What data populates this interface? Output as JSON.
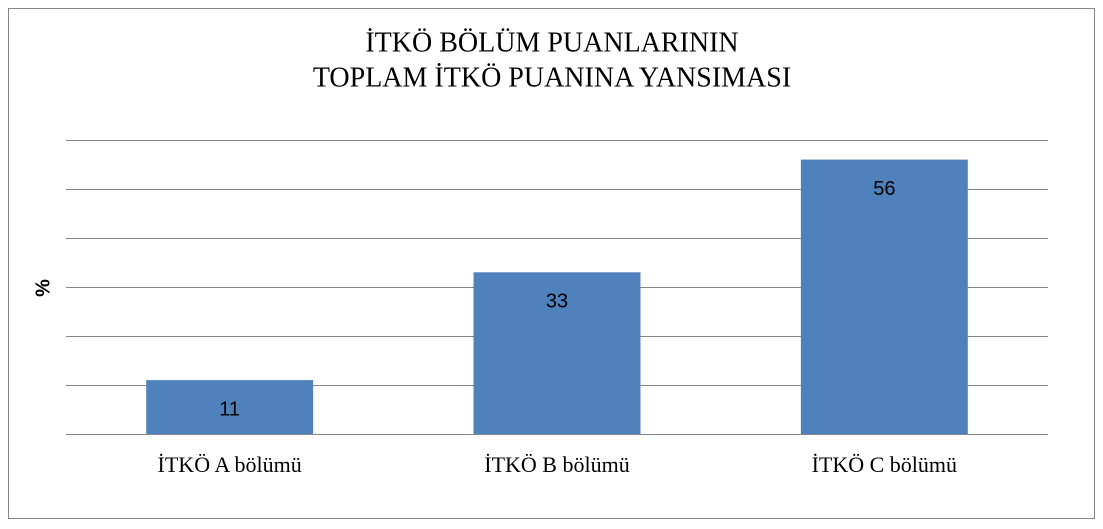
{
  "chart_data": {
    "type": "bar",
    "title": [
      "İTKÖ BÖLÜM PUANLARININ",
      "TOPLAM İTKÖ PUANINA YANSIMASI"
    ],
    "y_label": "%",
    "categories": [
      "İTKÖ A bölümü",
      "İTKÖ B bölümü",
      "İTKÖ C bölümü"
    ],
    "values": [
      11,
      33,
      56
    ],
    "color": "#4f81bd",
    "ylim": [
      0,
      60
    ],
    "yticks": [
      0,
      10,
      20,
      30,
      40,
      50,
      60
    ],
    "grid": true
  }
}
